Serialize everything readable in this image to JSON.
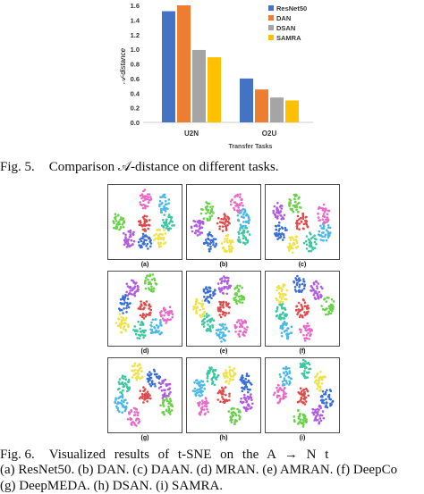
{
  "figure5": {
    "caption_label": "Fig. 5.",
    "caption_text": "Comparison 𝒜-distance on different tasks."
  },
  "chart_data": {
    "type": "bar",
    "categories": [
      "U2N",
      "O2U"
    ],
    "series": [
      {
        "name": "ResNet50",
        "values": [
          1.52,
          0.6
        ],
        "color": "#4472C4"
      },
      {
        "name": "DAN",
        "values": [
          1.6,
          0.45
        ],
        "color": "#ED7D31"
      },
      {
        "name": "DSAN",
        "values": [
          0.99,
          0.34
        ],
        "color": "#A5A5A5"
      },
      {
        "name": "SAMRA",
        "values": [
          0.89,
          0.3
        ],
        "color": "#FFC000"
      }
    ],
    "xlabel": "Transfer Tasks",
    "ylabel": "𝒜-distance",
    "ylim": [
      0,
      1.6
    ],
    "yticks": [
      "0.0",
      "0.2",
      "0.4",
      "0.6",
      "0.8",
      "1.0",
      "1.2",
      "1.4",
      "1.6"
    ],
    "legend_position": "top-right",
    "grid": false
  },
  "figure6": {
    "panels": [
      "(a)",
      "(b)",
      "(c)",
      "(d)",
      "(e)",
      "(f)",
      "(g)",
      "(h)",
      "(i)"
    ],
    "caption_label": "Fig. 6.",
    "caption_line1": "Visualized results of t-SNE on the A → N t",
    "caption_line2": "(a) ResNet50. (b) DAN. (c) DAAN. (d) MRAN. (e) AMRAN. (f) DeepCo",
    "caption_line3": "(g) DeepMEDA. (h) DSAN. (i) SAMRA.",
    "cluster_colors": [
      "#3cc7a0",
      "#f0e24a",
      "#3a6fd8",
      "#b05be0",
      "#6ad14a",
      "#e04a4a",
      "#e86ac8",
      "#4ab8e8"
    ]
  }
}
